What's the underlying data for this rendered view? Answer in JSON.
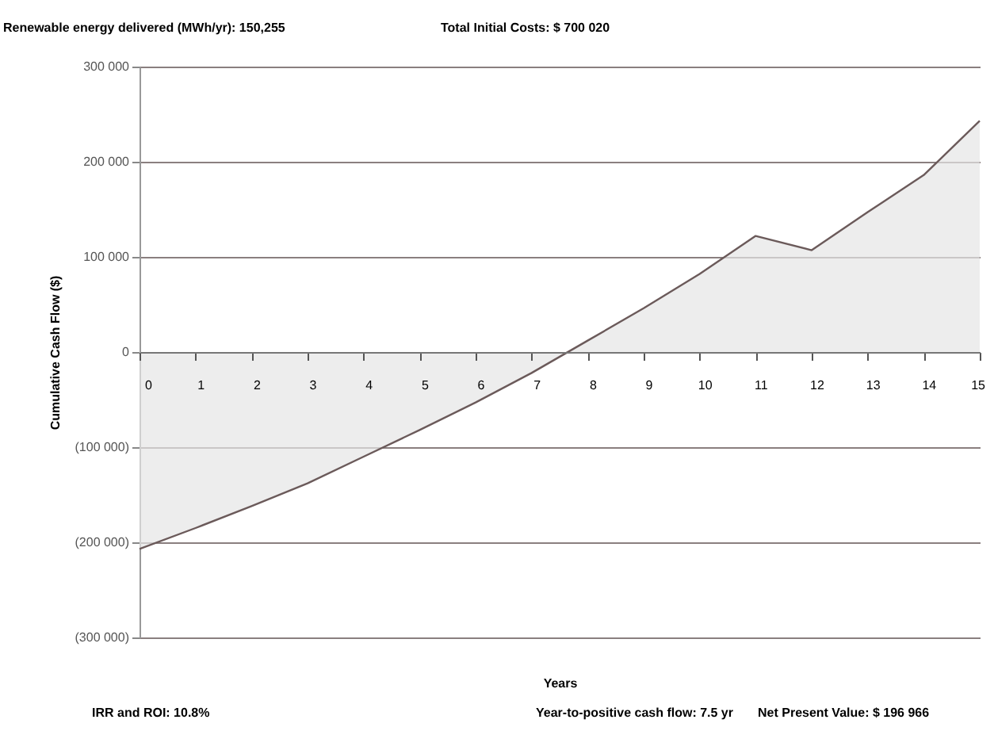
{
  "chart_data": {
    "type": "area",
    "xlabel": "Years",
    "ylabel": "Cumulative Cash Flow ($)",
    "x": [
      0,
      1,
      2,
      3,
      4,
      5,
      6,
      7,
      8,
      9,
      10,
      11,
      12,
      13,
      14,
      15
    ],
    "series": [
      {
        "color": "#e6e6e6",
        "values": [
          -207000,
          -185000,
          -162000,
          -138000,
          -110000,
          -82000,
          -53000,
          -22000,
          12000,
          46000,
          82000,
          122000,
          107000,
          147000,
          186000,
          243000
        ]
      }
    ],
    "xlim": [
      0,
      15
    ],
    "xticks": [
      0,
      1,
      2,
      3,
      4,
      5,
      6,
      7,
      8,
      9,
      10,
      11,
      12,
      13,
      14,
      15
    ],
    "ylim": [
      -300000,
      300000
    ],
    "yticks": [
      {
        "value": -300000,
        "label": "(300 000)"
      },
      {
        "value": -200000,
        "label": "(200 000)"
      },
      {
        "value": -100000,
        "label": "(100 000)"
      },
      0,
      {
        "value": 100000,
        "label": "100 000"
      },
      {
        "value": 200000,
        "label": "200 000"
      },
      {
        "value": 300000,
        "label": "300 000"
      }
    ],
    "grid": "y",
    "annotations": [
      "Renewable energy delivered (MWh/yr): 150,255",
      "Total Initial Costs:    $    700 020",
      "IRR and ROI:  10.8%",
      "Year-to-positive cash flow: 7.5 yr",
      "Net Present Value:  $  196 966"
    ]
  }
}
